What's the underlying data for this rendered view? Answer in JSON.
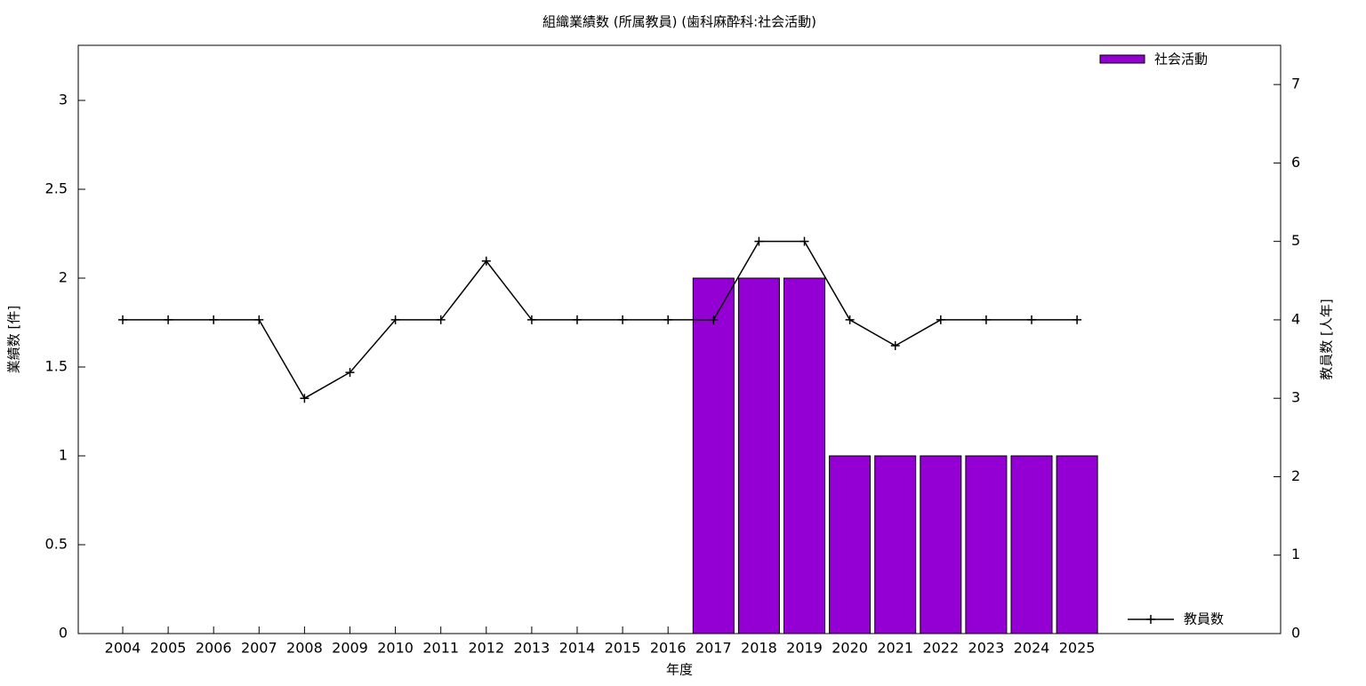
{
  "chart_data": {
    "type": "bar_line",
    "title": "組織業績数 (所属教員) (歯科麻酔科:社会活動)",
    "x_label": "年度",
    "y_label": "業績数 [件]",
    "y2_label": "教員数 [人年]",
    "categories": [
      "2004",
      "2005",
      "2006",
      "2007",
      "2008",
      "2009",
      "2010",
      "2011",
      "2012",
      "2013",
      "2014",
      "2015",
      "2016",
      "2017",
      "2018",
      "2019",
      "2020",
      "2021",
      "2022",
      "2023",
      "2024",
      "2025"
    ],
    "series": [
      {
        "name": "社会活動",
        "type": "bar",
        "color": "#9400d3",
        "values": [
          0,
          0,
          0,
          0,
          0,
          0,
          0,
          0,
          0,
          0,
          0,
          0,
          0,
          2,
          2,
          2,
          1,
          1,
          1,
          1,
          1,
          1
        ]
      },
      {
        "name": "教員数",
        "type": "line",
        "axis": "y2",
        "color": "#000000",
        "values": [
          4,
          4,
          4,
          4,
          3,
          3.33,
          4,
          4,
          4.75,
          4,
          4,
          4,
          4,
          4,
          5,
          5,
          4,
          3.67,
          4,
          4,
          4,
          4
        ]
      }
    ],
    "ylim": [
      0,
      3.31
    ],
    "yticks": [
      0,
      0.5,
      1,
      1.5,
      2,
      2.5,
      3
    ],
    "y2lim": [
      0,
      7.5
    ],
    "y2ticks": [
      0,
      1,
      2,
      3,
      4,
      5,
      6,
      7
    ],
    "grid": false
  }
}
